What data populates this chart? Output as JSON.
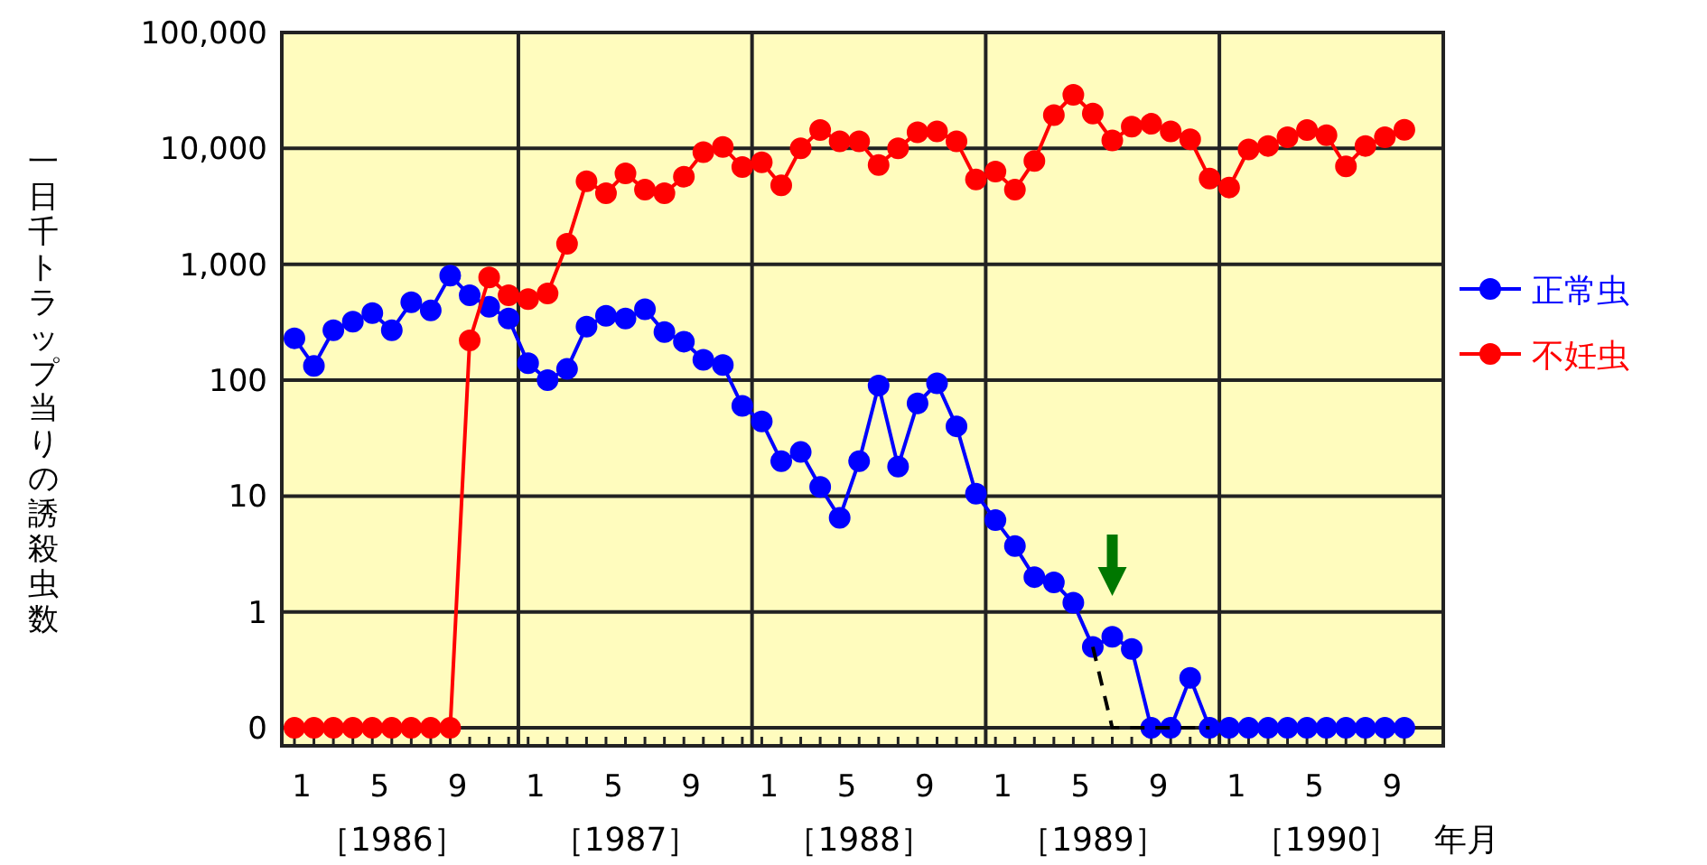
{
  "chart_data": {
    "type": "line",
    "ylabel": "一日千トラップ当りの誘殺虫数",
    "xlabel": "年月",
    "categories": [
      "1",
      null,
      null,
      null,
      "5",
      null,
      null,
      null,
      "9",
      null,
      null,
      null,
      "1",
      null,
      null,
      null,
      "5",
      null,
      null,
      null,
      "9",
      null,
      null,
      null,
      "1",
      null,
      null,
      null,
      "5",
      null,
      null,
      null,
      "9",
      null,
      null,
      null,
      "1",
      null,
      null,
      null,
      "5",
      null,
      null,
      null,
      "9",
      null,
      null,
      null,
      "1",
      null,
      null,
      null,
      "5",
      null,
      null,
      null,
      "9",
      null
    ],
    "annotations": [
      "［1986］",
      "［1987］",
      "［1988］",
      "［1989］",
      "［1990］"
    ],
    "log": "y",
    "ylim": [
      0.07,
      100000
    ],
    "yticks": [
      {
        "value": 0.1,
        "label": "0"
      },
      1,
      10,
      100,
      {
        "value": 1000,
        "label": "1,000"
      },
      {
        "value": 10000,
        "label": "10,000"
      },
      {
        "value": 100000,
        "label": "100,000"
      }
    ],
    "grid": true,
    "legend": "right",
    "series": [
      {
        "name": "正常虫",
        "color": "#0000ff",
        "marker": "circle",
        "values": [
          230,
          133,
          270,
          320,
          380,
          270,
          470,
          400,
          800,
          540,
          430,
          340,
          140,
          100,
          125,
          290,
          360,
          340,
          410,
          260,
          215,
          150,
          135,
          60,
          44,
          20,
          24,
          12,
          6.5,
          20,
          90,
          18,
          63,
          94,
          40,
          10.5,
          6.2,
          3.7,
          2.0,
          1.8,
          1.2,
          0.5,
          0.61,
          0.48,
          0.1,
          0.1,
          0.27,
          0.1,
          0.1,
          0.1,
          0.1,
          0.1,
          0.1,
          0.1,
          0.1,
          0.1,
          0.1,
          0.1
        ]
      },
      {
        "name": "不妊虫",
        "color": "#ff0000",
        "marker": "circle",
        "values": [
          0.1,
          0.1,
          0.1,
          0.1,
          0.1,
          0.1,
          0.1,
          0.1,
          0.1,
          220,
          770,
          540,
          500,
          560,
          1500,
          5200,
          4100,
          6100,
          4400,
          4100,
          5700,
          9300,
          10300,
          6900,
          7600,
          4800,
          10000,
          14400,
          11500,
          11500,
          7200,
          10000,
          13800,
          14000,
          11500,
          5400,
          6300,
          4400,
          7800,
          19400,
          29000,
          20000,
          11700,
          15400,
          16300,
          14000,
          12000,
          5500,
          4600,
          9800,
          10500,
          12500,
          14400,
          13000,
          7000,
          10500,
          12500,
          14500
        ]
      },
      {
        "color": "#000000",
        "line_style": "dashed",
        "values": [
          null,
          null,
          null,
          null,
          null,
          null,
          null,
          null,
          null,
          null,
          null,
          null,
          null,
          null,
          null,
          null,
          null,
          null,
          null,
          null,
          null,
          null,
          null,
          null,
          null,
          null,
          null,
          null,
          null,
          null,
          null,
          null,
          null,
          null,
          null,
          null,
          null,
          null,
          null,
          null,
          null,
          0.5,
          0.1,
          0.1,
          0.1,
          0.1,
          0.1,
          0.1,
          null,
          null,
          null,
          null,
          null,
          null,
          null,
          null,
          null,
          null
        ]
      }
    ]
  }
}
